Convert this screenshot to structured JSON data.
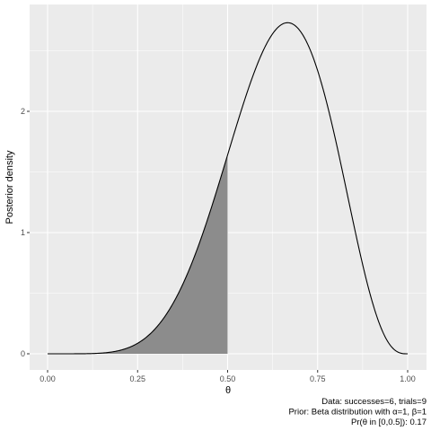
{
  "chart_data": {
    "type": "area",
    "distribution": "Beta posterior",
    "successes": 6,
    "trials": 9,
    "prior_alpha": 1,
    "prior_beta": 1,
    "posterior_alpha": 7,
    "posterior_beta": 4,
    "xlabel": "θ",
    "ylabel": "Posterior density",
    "xlim": [
      0,
      1
    ],
    "ylim": [
      0,
      2.75
    ],
    "x_ticks": [
      0,
      0.25,
      0.5,
      0.75,
      1
    ],
    "x_tick_labels": [
      "0.00",
      "0.25",
      "0.50",
      "0.75",
      "1.00"
    ],
    "y_ticks": [
      0,
      1,
      2
    ],
    "y_tick_labels": [
      "0",
      "1",
      "2"
    ],
    "shaded_interval": [
      0,
      0.5
    ],
    "shaded_probability": 0.17,
    "grid": true,
    "caption": [
      "Data: successes=6, trials=9",
      "Prior: Beta distribution with α=1, β=1",
      "Pr(θ in [0,0.5]): 0.17"
    ],
    "colors": {
      "panel_background": "#ebebeb",
      "grid": "#ffffff",
      "curve": "#000000",
      "shaded_area": "#8c8c8c"
    }
  }
}
